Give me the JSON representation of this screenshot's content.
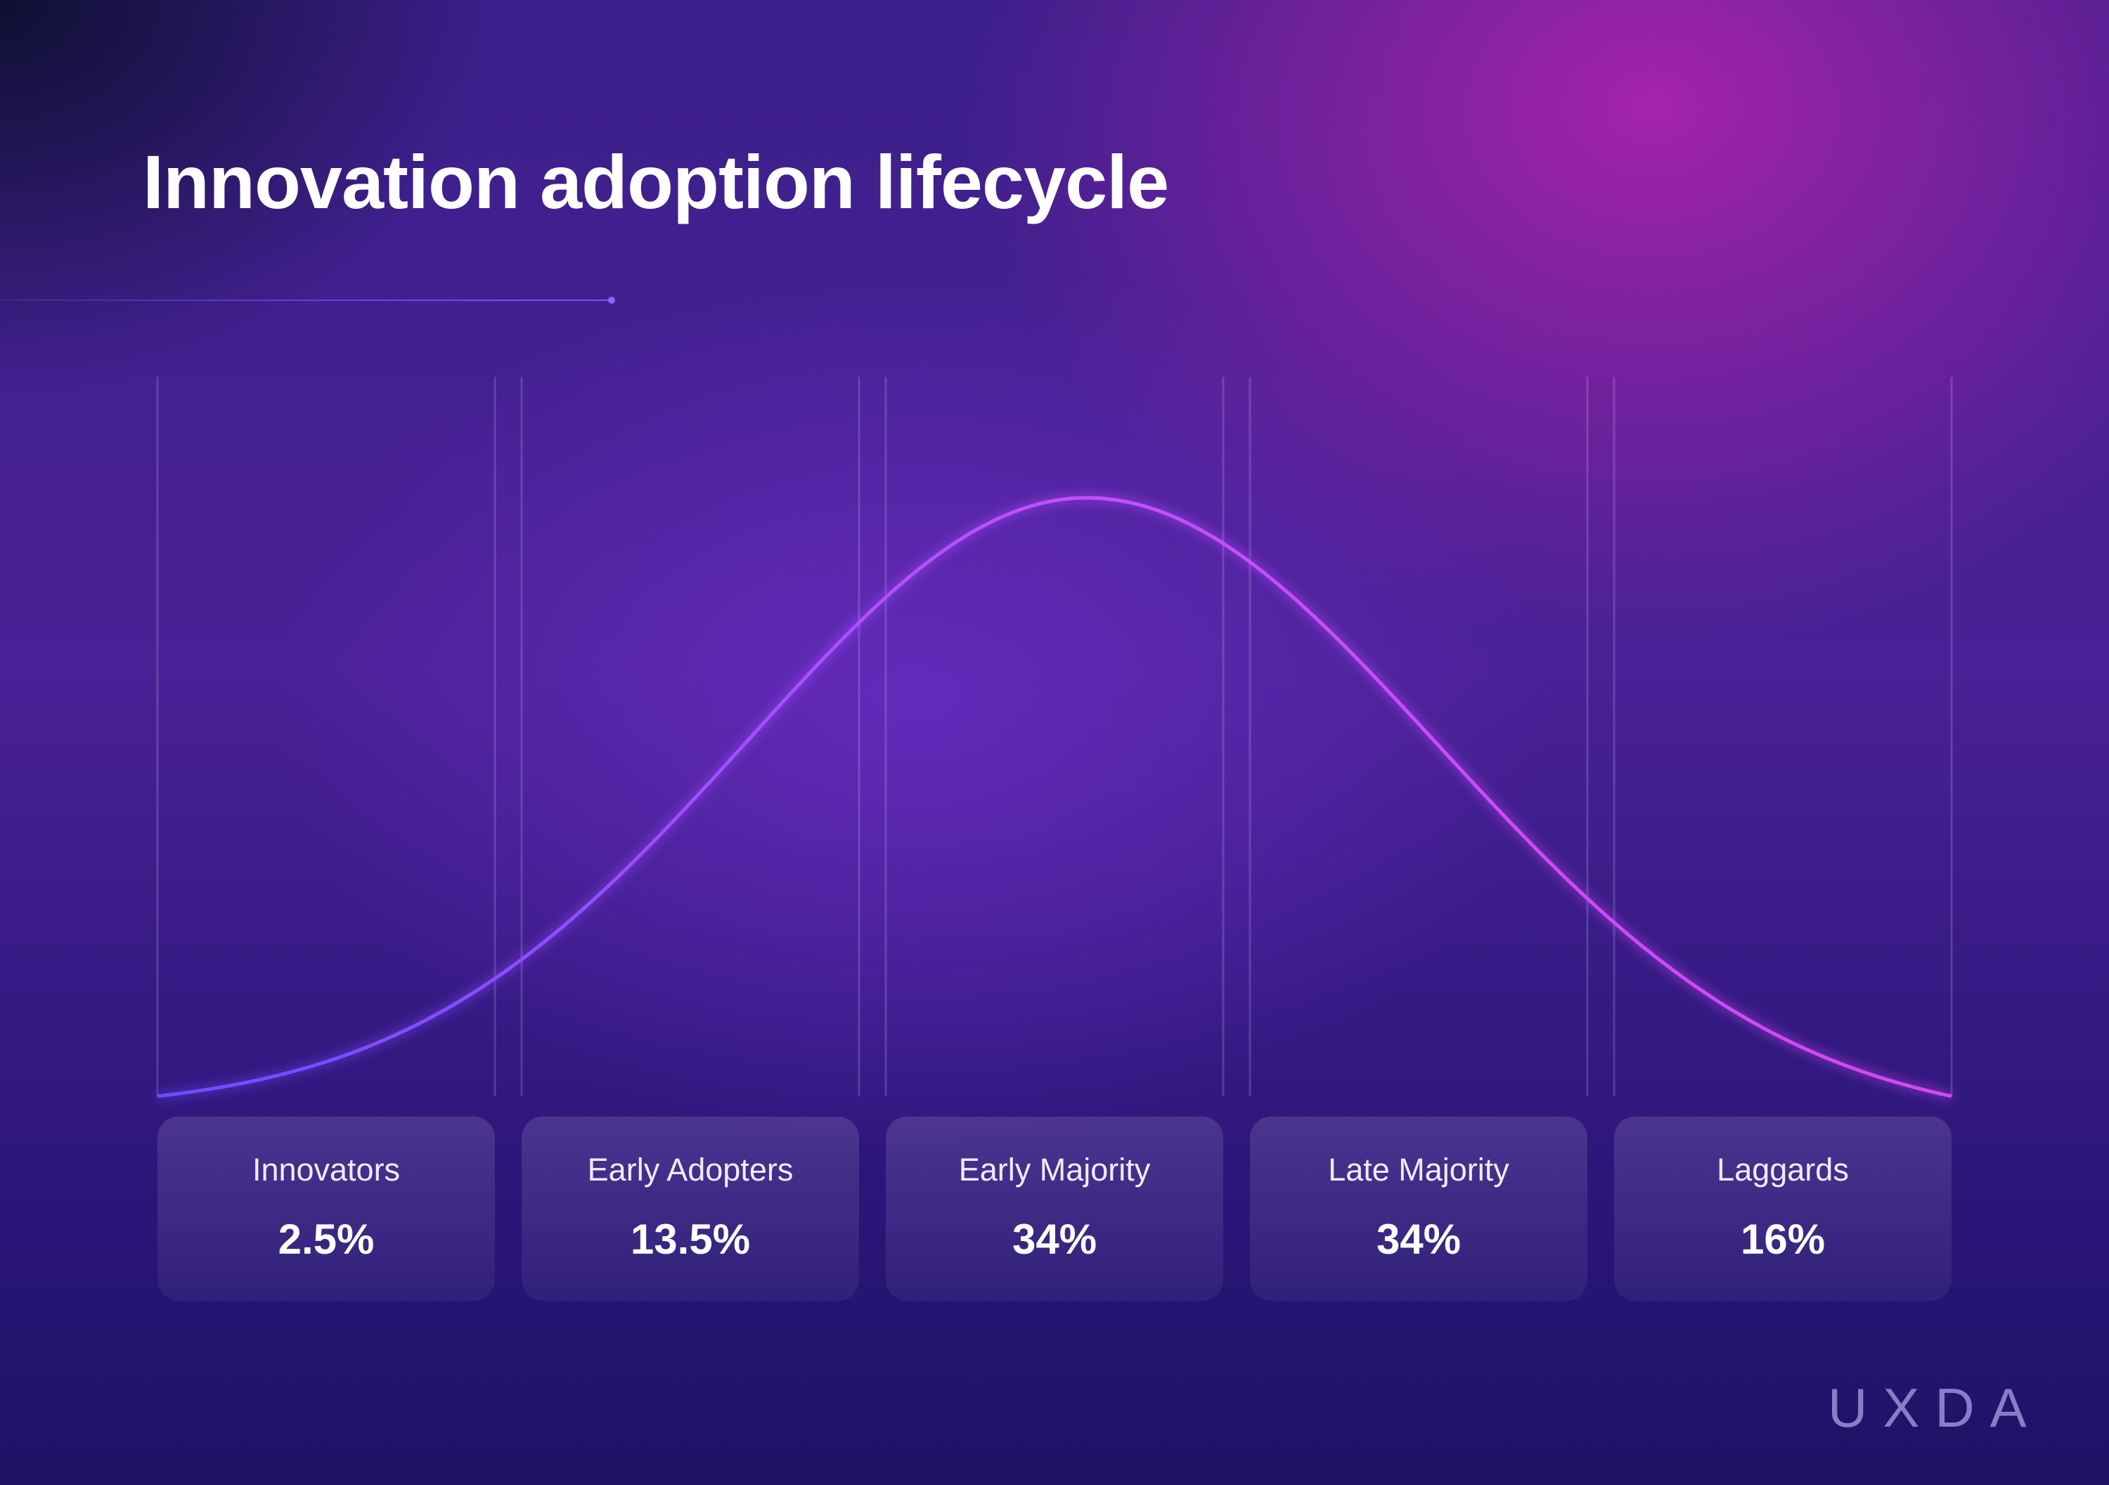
{
  "title": "Innovation adoption lifecycle",
  "logo": "UXDA",
  "colors": {
    "curve_start": "#6a4cff",
    "curve_end": "#e040ff",
    "accent_line": "#7a55ff"
  },
  "chart_data": {
    "type": "area",
    "title": "Innovation adoption lifecycle",
    "distribution": "normal (bell curve)",
    "categories": [
      "Innovators",
      "Early Adopters",
      "Early Majority",
      "Late Majority",
      "Laggards"
    ],
    "values": [
      2.5,
      13.5,
      34,
      34,
      16
    ],
    "value_labels": [
      "2.5%",
      "13.5%",
      "34%",
      "34%",
      "16%"
    ],
    "xlabel": "",
    "ylabel": "",
    "grid": false
  }
}
